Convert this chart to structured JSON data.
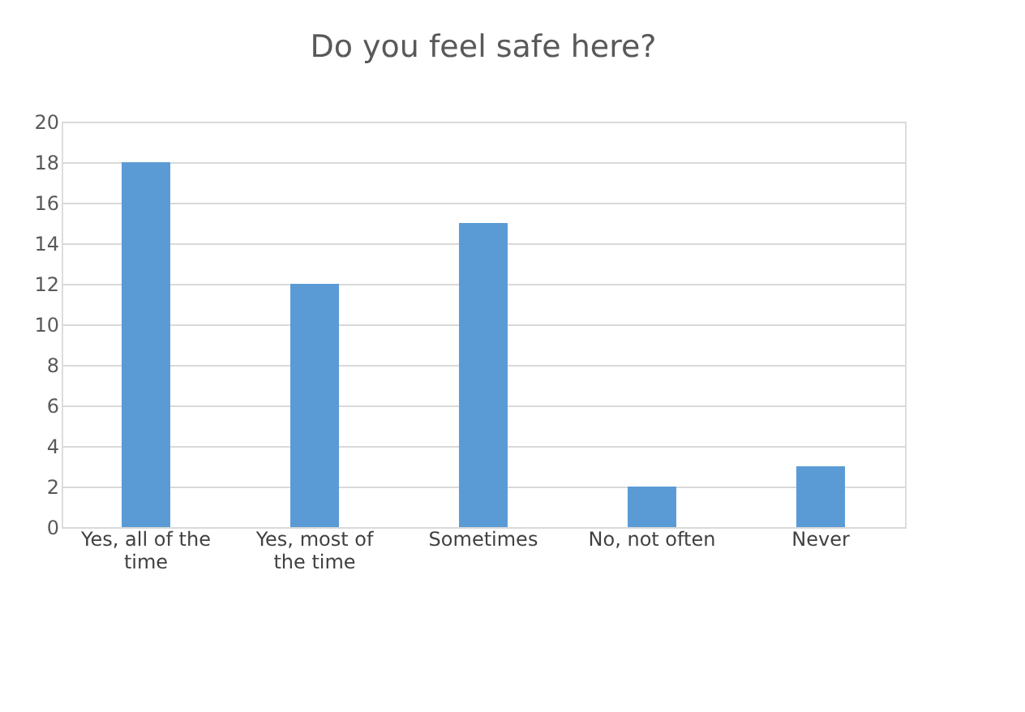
{
  "chart_data": {
    "type": "bar",
    "title": "Do you feel safe here?",
    "categories": [
      "Yes, all of the time",
      "Yes, most of the time",
      "Sometimes",
      "No, not often",
      "Never"
    ],
    "values": [
      18,
      12,
      15,
      2,
      3
    ],
    "color": "#5b9bd5",
    "ylim": [
      0,
      20
    ],
    "yticks": [
      0,
      2,
      4,
      6,
      8,
      10,
      12,
      14,
      16,
      18,
      20
    ],
    "grid": "y"
  }
}
